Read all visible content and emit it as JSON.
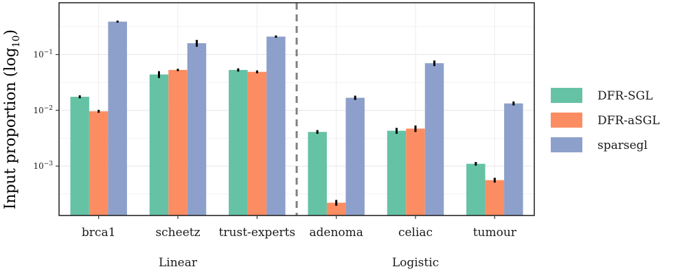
{
  "chart_data": {
    "type": "bar",
    "ylabel": "Input proportion (log",
    "ylabel_sub": "10",
    "ylabel_close": ")",
    "yscale": "log10",
    "ylim": [
      0.00013,
      0.85
    ],
    "yticks": [
      {
        "value": 0.001,
        "base": "10",
        "exp": "−3"
      },
      {
        "value": 0.01,
        "base": "10",
        "exp": "−2"
      },
      {
        "value": 0.1,
        "base": "10",
        "exp": "−1"
      }
    ],
    "categories": [
      "brca1",
      "scheetz",
      "trust-experts",
      "adenoma",
      "celiac",
      "tumour"
    ],
    "groups": [
      {
        "label": "Linear",
        "categories": [
          "brca1",
          "scheetz",
          "trust-experts"
        ]
      },
      {
        "label": "Logistic",
        "categories": [
          "adenoma",
          "celiac",
          "tumour"
        ]
      }
    ],
    "series": [
      {
        "name": "DFR-SGL",
        "color": "#66c2a5",
        "values": [
          0.0175,
          0.044,
          0.053,
          0.0041,
          0.0043,
          0.0011
        ],
        "errors": [
          0.0006,
          0.005,
          0.002,
          0.0002,
          0.0004,
          5e-05
        ]
      },
      {
        "name": "DFR-aSGL",
        "color": "#fc8d62",
        "values": [
          0.0096,
          0.053,
          0.049,
          0.00022,
          0.0047,
          0.00056
        ],
        "errors": [
          0.0003,
          0.001,
          0.0015,
          2e-05,
          0.0005,
          4e-05
        ]
      },
      {
        "name": "sparsegl",
        "color": "#8da0cb",
        "values": [
          0.39,
          0.16,
          0.21,
          0.0168,
          0.07,
          0.0133
        ],
        "errors": [
          0.006,
          0.018,
          0.004,
          0.001,
          0.006,
          0.0007
        ]
      }
    ],
    "legend_position": "right",
    "grid": true,
    "divider_after": "trust-experts"
  }
}
